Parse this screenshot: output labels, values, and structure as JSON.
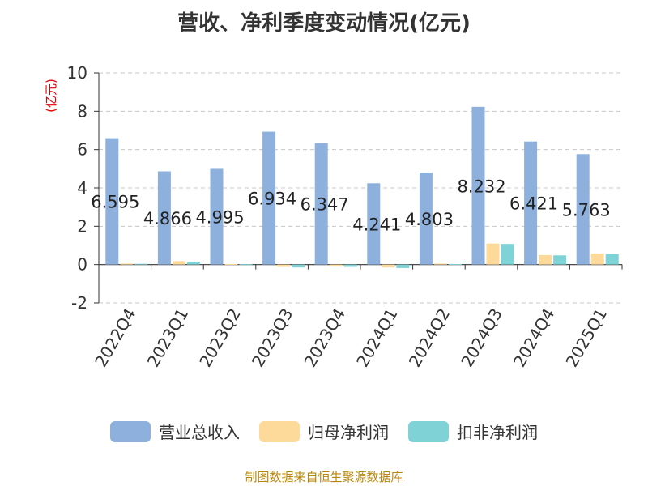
{
  "chart_data": {
    "type": "bar",
    "title": "营收、净利季度变动情况(亿元)",
    "ylabel": "(亿元)",
    "ylim": [
      -2,
      10
    ],
    "yticks": [
      -2,
      0,
      2,
      4,
      6,
      8,
      10
    ],
    "grid": true,
    "legend_position": "bottom",
    "categories": [
      "2022Q4",
      "2023Q1",
      "2023Q2",
      "2023Q3",
      "2023Q4",
      "2024Q1",
      "2024Q2",
      "2024Q3",
      "2024Q4",
      "2025Q1"
    ],
    "series": [
      {
        "name": "营业总收入",
        "color": "#8eb0dd",
        "values": [
          6.595,
          4.866,
          4.995,
          6.934,
          6.347,
          4.241,
          4.803,
          8.232,
          6.421,
          5.763
        ],
        "labels": [
          "6.595",
          "4.866",
          "4.995",
          "6.934",
          "6.347",
          "4.241",
          "4.803",
          "8.232",
          "6.421",
          "5.763"
        ]
      },
      {
        "name": "归母净利润",
        "color": "#fdd99a",
        "values": [
          0.05,
          0.18,
          0.03,
          -0.12,
          -0.1,
          -0.15,
          0.05,
          1.1,
          0.5,
          0.58
        ]
      },
      {
        "name": "扣非净利润",
        "color": "#7fd3d6",
        "values": [
          0.04,
          0.15,
          0.02,
          -0.15,
          -0.12,
          -0.18,
          0.03,
          1.08,
          0.48,
          0.55
        ]
      }
    ]
  },
  "source_text": "制图数据来自恒生聚源数据库"
}
